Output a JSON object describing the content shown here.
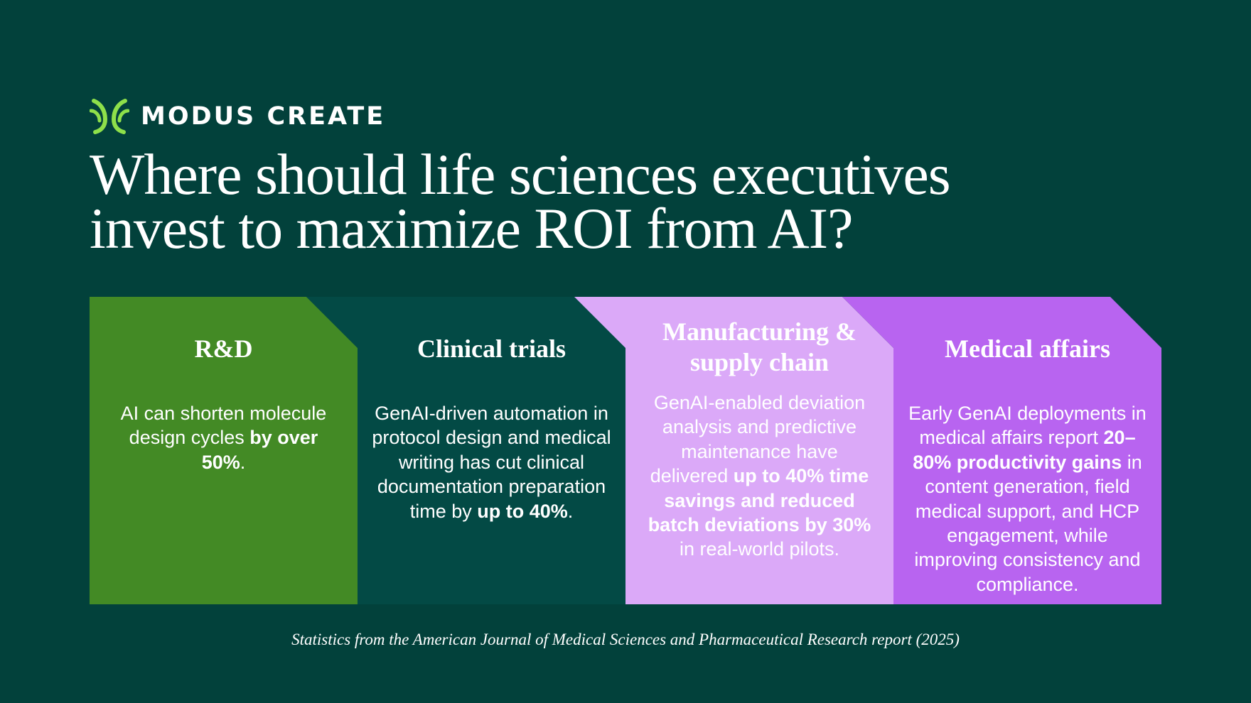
{
  "brand": {
    "name": "MODUS CREATE",
    "logo_icon": "leaf-mark-icon",
    "logo_color": "#8ee04a"
  },
  "headline": "Where should life sciences executives invest to maximize ROI from AI?",
  "panels": [
    {
      "title": "R&D",
      "color": "#438a25",
      "text_color": "#ffffff",
      "body": [
        {
          "text": "AI can shorten molecule design cycles ",
          "bold": false
        },
        {
          "text": "by over 50%",
          "bold": true
        },
        {
          "text": ".",
          "bold": false
        }
      ]
    },
    {
      "title": "Clinical trials",
      "color": "#034a45",
      "text_color": "#ffffff",
      "body": [
        {
          "text": "GenAI-driven automation in protocol design and medical writing has cut clinical documentation preparation time by ",
          "bold": false
        },
        {
          "text": "up to 40%",
          "bold": true
        },
        {
          "text": ".",
          "bold": false
        }
      ]
    },
    {
      "title": "Manufacturing & supply chain",
      "color": "#dba9f8",
      "text_color": "#ffffff",
      "body": [
        {
          "text": "GenAI-enabled deviation analysis and predictive maintenance have delivered ",
          "bold": false
        },
        {
          "text": "up to 40% time savings and reduced batch deviations by 30%",
          "bold": true
        },
        {
          "text": " in real-world pilots.",
          "bold": false
        }
      ]
    },
    {
      "title": "Medical affairs",
      "color": "#b864f0",
      "text_color": "#ffffff",
      "body": [
        {
          "text": "Early GenAI deployments in medical affairs report ",
          "bold": false
        },
        {
          "text": "20–80% productivity gains",
          "bold": true
        },
        {
          "text": " in content generation, field medical support, and HCP engagement, while improving consistency and compliance.",
          "bold": false
        }
      ]
    }
  ],
  "footnote": "Statistics from the American Journal of Medical Sciences and Pharmaceutical Research report (2025)"
}
